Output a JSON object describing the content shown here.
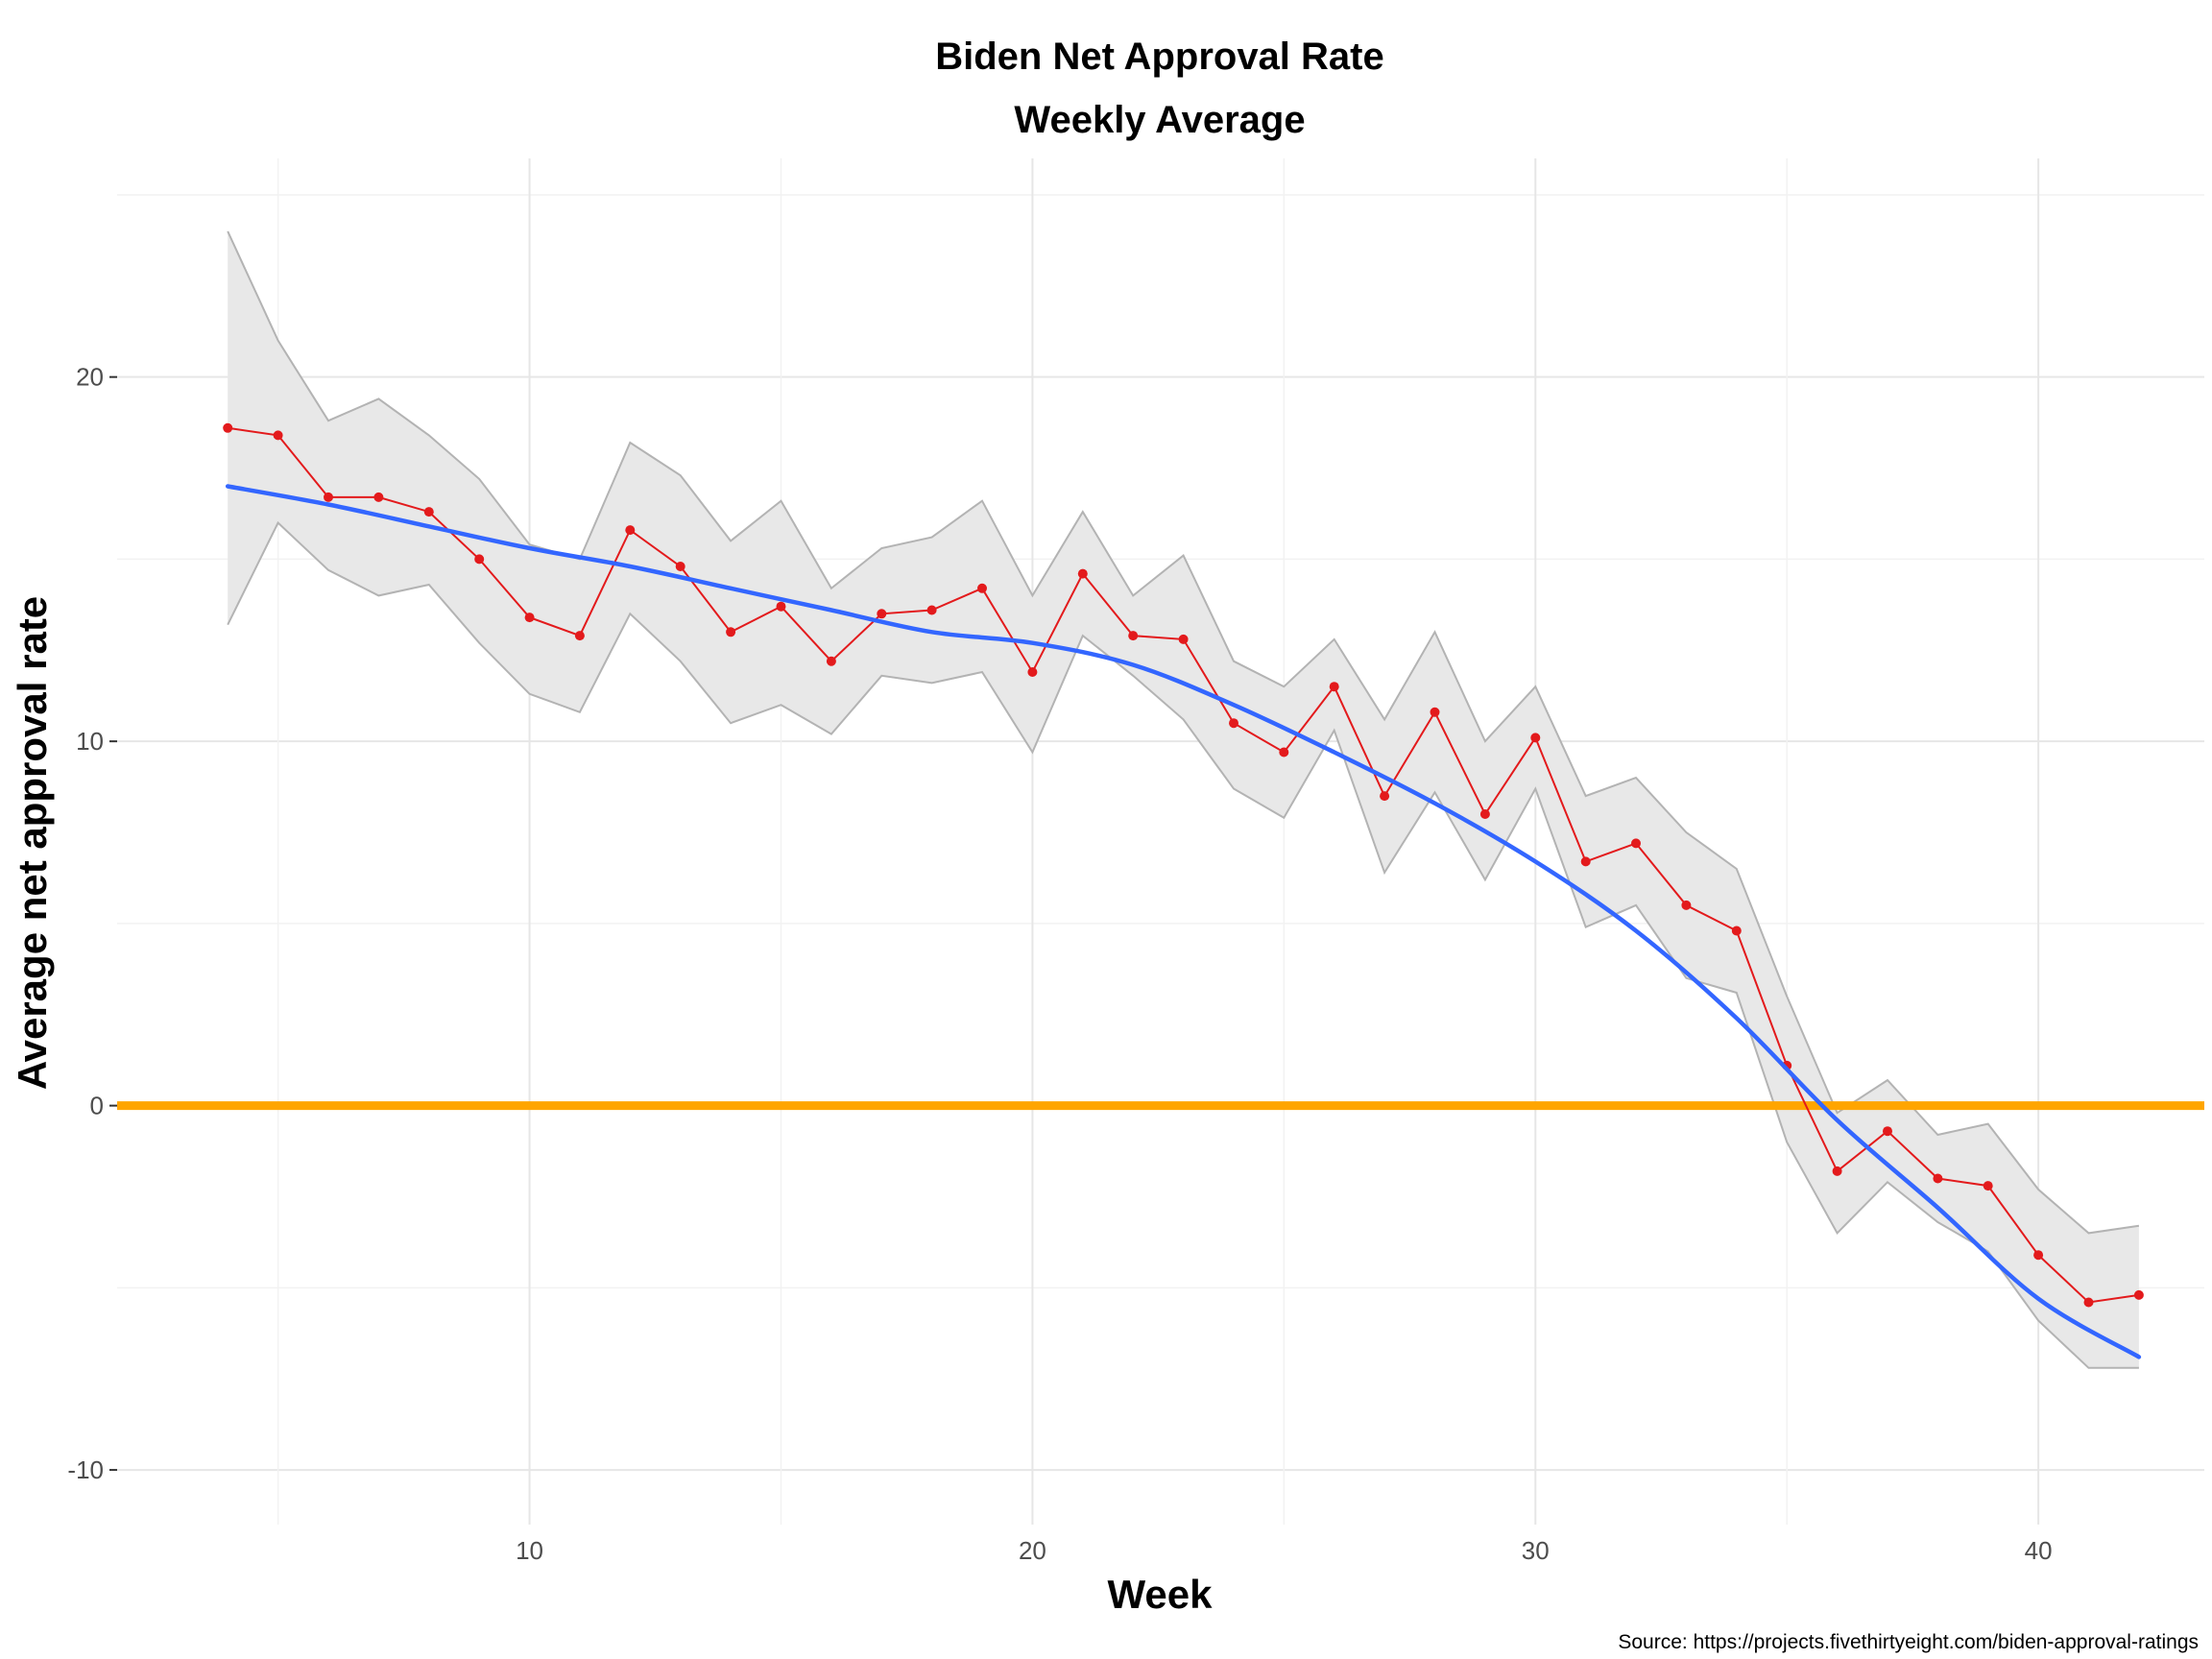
{
  "chart_data": {
    "type": "line",
    "title": "Biden Net Approval Rate",
    "subtitle": "Weekly Average",
    "xlabel": "Week",
    "ylabel": "Average net approval rate",
    "caption": "Source: https://projects.fivethirtyeight.com/biden-approval-ratings",
    "xlim": [
      1.8,
      43.3
    ],
    "ylim": [
      -11.5,
      26
    ],
    "x_ticks": [
      10,
      20,
      30,
      40
    ],
    "y_ticks": [
      -10,
      0,
      10,
      20
    ],
    "grid": true,
    "reference_line": {
      "y": 0,
      "color": "#FFA500"
    },
    "series": [
      {
        "x": [
          4,
          5,
          6,
          7,
          8,
          9,
          10,
          11,
          12,
          13,
          14,
          15,
          16,
          17,
          18,
          19,
          20,
          21,
          22,
          23,
          24,
          25,
          26,
          27,
          28,
          29,
          30,
          31,
          32,
          33,
          34,
          35,
          36,
          37,
          38,
          39,
          40,
          41,
          42
        ],
        "values": [
          18.6,
          18.4,
          16.7,
          16.7,
          16.3,
          15.0,
          13.4,
          12.9,
          15.8,
          14.8,
          13.0,
          13.7,
          12.2,
          13.5,
          13.6,
          14.2,
          11.9,
          14.6,
          12.9,
          12.8,
          10.5,
          9.7,
          11.5,
          8.5,
          10.8,
          8.0,
          10.1,
          6.7,
          7.2,
          5.5,
          4.8,
          1.1,
          -1.8,
          -0.7,
          -2.0,
          -2.2,
          -4.1,
          -5.4,
          -5.2
        ],
        "color": "#E31A1C"
      }
    ],
    "ribbon": {
      "color": "#E8E8E8",
      "upper": [
        24.0,
        21.0,
        18.8,
        19.4,
        18.4,
        17.2,
        15.4,
        15.0,
        18.2,
        17.3,
        15.5,
        16.6,
        14.2,
        15.3,
        15.6,
        16.6,
        14.0,
        16.3,
        14.0,
        15.1,
        12.2,
        11.5,
        12.8,
        10.6,
        13.0,
        10.0,
        11.5,
        8.5,
        9.0,
        7.5,
        6.5,
        3.0,
        -0.2,
        0.7,
        -0.8,
        -0.5,
        -2.3,
        -3.5,
        -3.3
      ],
      "lower": [
        13.2,
        16.0,
        14.7,
        14.0,
        14.3,
        12.7,
        11.3,
        10.8,
        13.5,
        12.2,
        10.5,
        11.0,
        10.2,
        11.8,
        11.6,
        11.9,
        9.7,
        12.9,
        11.8,
        10.6,
        8.7,
        7.9,
        10.3,
        6.4,
        8.6,
        6.2,
        8.7,
        4.9,
        5.5,
        3.5,
        3.1,
        -1.0,
        -3.5,
        -2.1,
        -3.2,
        -4.0,
        -5.9,
        -7.2,
        -7.2
      ]
    },
    "trend": {
      "color": "#3366FF",
      "x": [
        4,
        6,
        8,
        10,
        12,
        14,
        16,
        18,
        20,
        22,
        24,
        26,
        28,
        30,
        32,
        34,
        36,
        38,
        40,
        42
      ],
      "values": [
        17.0,
        16.5,
        15.9,
        15.3,
        14.8,
        14.2,
        13.6,
        13.0,
        12.7,
        12.1,
        11.0,
        9.7,
        8.3,
        6.7,
        4.8,
        2.4,
        -0.4,
        -2.8,
        -5.3,
        -6.9
      ]
    }
  }
}
